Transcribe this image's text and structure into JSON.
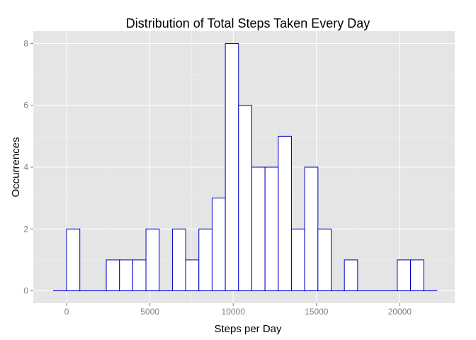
{
  "chart_data": {
    "type": "bar",
    "title": "Distribution of Total Steps Taken Every Day",
    "xlabel": "Steps per Day",
    "ylabel": "Occurrences",
    "bin_width": 794,
    "bin_starts": [
      -794,
      0,
      794,
      1588,
      2382,
      3176,
      3970,
      4764,
      5558,
      6352,
      7146,
      7940,
      8734,
      9528,
      10322,
      11116,
      11910,
      12704,
      13498,
      14292,
      15086,
      15880,
      16674,
      17468,
      18262,
      19056,
      19850,
      20644,
      21438
    ],
    "values": [
      0,
      2,
      0,
      0,
      1,
      1,
      1,
      2,
      0,
      2,
      1,
      2,
      3,
      8,
      6,
      4,
      4,
      5,
      2,
      4,
      2,
      0,
      1,
      0,
      0,
      0,
      1,
      1,
      0
    ],
    "xlim": [
      -2000,
      23300
    ],
    "ylim": [
      -0.4,
      8.4
    ],
    "x_ticks": [
      0,
      5000,
      10000,
      15000,
      20000
    ],
    "x_tick_labels": [
      "0",
      "5000",
      "10000",
      "15000",
      "20000"
    ],
    "y_ticks": [
      0,
      2,
      4,
      6,
      8
    ],
    "y_tick_labels": [
      "0",
      "2",
      "4",
      "6",
      "8"
    ],
    "grid": true,
    "panel_color": "#e5e5e5",
    "grid_color": "#ffffff",
    "bar_fill": "#ffffff",
    "bar_outline": "#0000cc"
  }
}
